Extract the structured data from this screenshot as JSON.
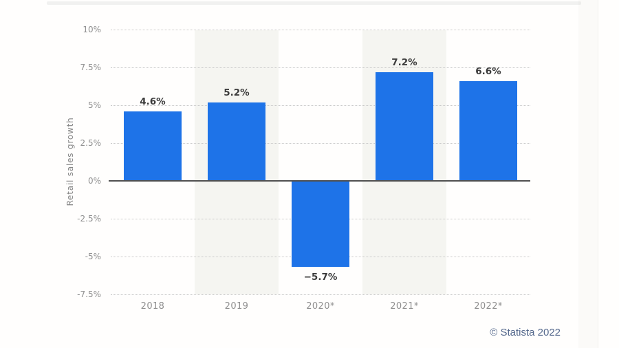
{
  "chart_data": {
    "type": "bar",
    "title": "",
    "categories": [
      "2018",
      "2019",
      "2020*",
      "2021*",
      "2022*"
    ],
    "values": [
      4.6,
      5.2,
      -5.7,
      7.2,
      6.6
    ],
    "value_labels": [
      "4.6%",
      "5.2%",
      "−5.7%",
      "7.2%",
      "6.6%"
    ],
    "xlabel": "",
    "ylabel": "Retail sales growth",
    "ylim": [
      -7.5,
      10
    ],
    "yticks": [
      10,
      7.5,
      5,
      2.5,
      0,
      -2.5,
      -5,
      -7.5
    ],
    "ytick_labels": [
      "10%",
      "7.5%",
      "5%",
      "2.5%",
      "0%",
      "-2.5%",
      "-5%",
      "-7.5%"
    ],
    "grid": "horizontal-dotted",
    "legend": "none",
    "shaded_columns": [
      1,
      3
    ],
    "colors": {
      "bar": "#1e73e8",
      "band": "#f5f5f1",
      "gridline": "#c9c9c9",
      "zero_line": "#4f4f4f",
      "tick_text": "#8f8f8f",
      "value_text": "#3b3b3b",
      "credit_text": "#54688c"
    }
  },
  "credit": "© Statista 2022"
}
